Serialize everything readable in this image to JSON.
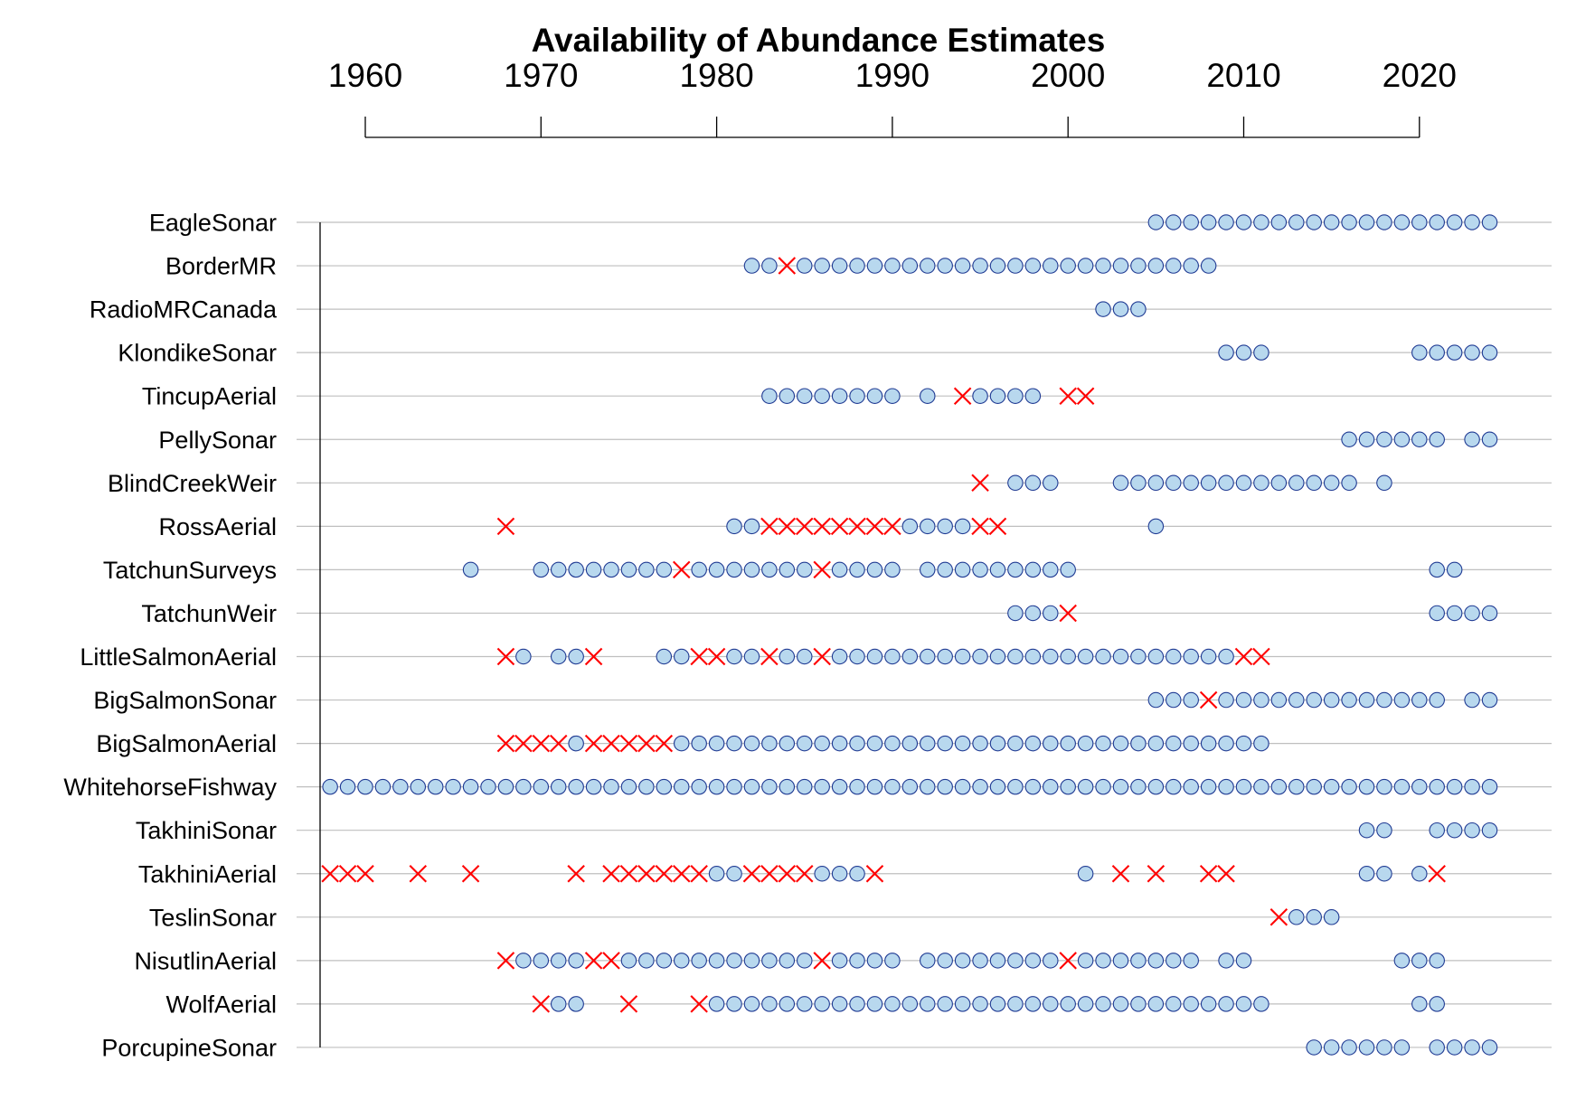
{
  "chart_data": {
    "type": "scatter",
    "title": "Availability of Abundance Estimates",
    "xlabel": "",
    "ylabel": "",
    "x_axis_position": "top",
    "xlim": [
      1957.8,
      2026.8
    ],
    "x_ticks": [
      1960,
      1970,
      1980,
      1990,
      2000,
      2010,
      2020
    ],
    "grid": "horizontal",
    "legend": "none",
    "colors": {
      "available_fill": "#b8d8ee",
      "available_stroke": "#1f3a93",
      "cross": "#ff0000",
      "gridline": "#bfbfbf",
      "axis": "#000000"
    },
    "series": [
      {
        "name": "EagleSonar",
        "available": [
          2005,
          2006,
          2007,
          2008,
          2009,
          2010,
          2011,
          2012,
          2013,
          2014,
          2015,
          2016,
          2017,
          2018,
          2019,
          2020,
          2021,
          2022,
          2023,
          2024
        ],
        "unavailable": []
      },
      {
        "name": "BorderMR",
        "available": [
          1982,
          1983,
          1985,
          1986,
          1987,
          1988,
          1989,
          1990,
          1991,
          1992,
          1993,
          1994,
          1995,
          1996,
          1997,
          1998,
          1999,
          2000,
          2001,
          2002,
          2003,
          2004,
          2005,
          2006,
          2007,
          2008
        ],
        "unavailable": [
          1984
        ]
      },
      {
        "name": "RadioMRCanada",
        "available": [
          2002,
          2003,
          2004
        ],
        "unavailable": []
      },
      {
        "name": "KlondikeSonar",
        "available": [
          2009,
          2010,
          2011,
          2020,
          2021,
          2022,
          2023,
          2024
        ],
        "unavailable": []
      },
      {
        "name": "TincupAerial",
        "available": [
          1983,
          1984,
          1985,
          1986,
          1987,
          1988,
          1989,
          1990,
          1992,
          1995,
          1996,
          1997,
          1998
        ],
        "unavailable": [
          1994,
          2000,
          2001
        ]
      },
      {
        "name": "PellySonar",
        "available": [
          2016,
          2017,
          2018,
          2019,
          2020,
          2021,
          2023,
          2024
        ],
        "unavailable": []
      },
      {
        "name": "BlindCreekWeir",
        "available": [
          1997,
          1998,
          1999,
          2003,
          2004,
          2005,
          2006,
          2007,
          2008,
          2009,
          2010,
          2011,
          2012,
          2013,
          2014,
          2015,
          2016,
          2018
        ],
        "unavailable": [
          1995
        ]
      },
      {
        "name": "RossAerial",
        "available": [
          1981,
          1982,
          1991,
          1992,
          1993,
          1994,
          2005
        ],
        "unavailable": [
          1968,
          1983,
          1984,
          1985,
          1986,
          1987,
          1988,
          1989,
          1990,
          1995,
          1996
        ]
      },
      {
        "name": "TatchunSurveys",
        "available": [
          1966,
          1970,
          1971,
          1972,
          1973,
          1974,
          1975,
          1976,
          1977,
          1979,
          1980,
          1981,
          1982,
          1983,
          1984,
          1985,
          1987,
          1988,
          1989,
          1990,
          1992,
          1993,
          1994,
          1995,
          1996,
          1997,
          1998,
          1999,
          2000,
          2021,
          2022
        ],
        "unavailable": [
          1978,
          1986
        ]
      },
      {
        "name": "TatchunWeir",
        "available": [
          1997,
          1998,
          1999,
          2021,
          2022,
          2023,
          2024
        ],
        "unavailable": [
          2000
        ]
      },
      {
        "name": "LittleSalmonAerial",
        "available": [
          1969,
          1971,
          1972,
          1977,
          1978,
          1981,
          1982,
          1984,
          1985,
          1987,
          1988,
          1989,
          1990,
          1991,
          1992,
          1993,
          1994,
          1995,
          1996,
          1997,
          1998,
          1999,
          2000,
          2001,
          2002,
          2003,
          2004,
          2005,
          2006,
          2007,
          2008,
          2009
        ],
        "unavailable": [
          1968,
          1973,
          1979,
          1980,
          1983,
          1986,
          2010,
          2011
        ]
      },
      {
        "name": "BigSalmonSonar",
        "available": [
          2005,
          2006,
          2007,
          2009,
          2010,
          2011,
          2012,
          2013,
          2014,
          2015,
          2016,
          2017,
          2018,
          2019,
          2020,
          2021,
          2023,
          2024
        ],
        "unavailable": [
          2008
        ]
      },
      {
        "name": "BigSalmonAerial",
        "available": [
          1972,
          1978,
          1979,
          1980,
          1981,
          1982,
          1983,
          1984,
          1985,
          1986,
          1987,
          1988,
          1989,
          1990,
          1991,
          1992,
          1993,
          1994,
          1995,
          1996,
          1997,
          1998,
          1999,
          2000,
          2001,
          2002,
          2003,
          2004,
          2005,
          2006,
          2007,
          2008,
          2009,
          2010,
          2011
        ],
        "unavailable": [
          1968,
          1969,
          1970,
          1971,
          1973,
          1974,
          1975,
          1976,
          1977
        ]
      },
      {
        "name": "WhitehorseFishway",
        "available": [
          1958,
          1959,
          1960,
          1961,
          1962,
          1963,
          1964,
          1965,
          1966,
          1967,
          1968,
          1969,
          1970,
          1971,
          1972,
          1973,
          1974,
          1975,
          1976,
          1977,
          1978,
          1979,
          1980,
          1981,
          1982,
          1983,
          1984,
          1985,
          1986,
          1987,
          1988,
          1989,
          1990,
          1991,
          1992,
          1993,
          1994,
          1995,
          1996,
          1997,
          1998,
          1999,
          2000,
          2001,
          2002,
          2003,
          2004,
          2005,
          2006,
          2007,
          2008,
          2009,
          2010,
          2011,
          2012,
          2013,
          2014,
          2015,
          2016,
          2017,
          2018,
          2019,
          2020,
          2021,
          2022,
          2023,
          2024
        ],
        "unavailable": []
      },
      {
        "name": "TakhiniSonar",
        "available": [
          2017,
          2018,
          2021,
          2022,
          2023,
          2024
        ],
        "unavailable": []
      },
      {
        "name": "TakhiniAerial",
        "available": [
          1980,
          1981,
          1986,
          1987,
          1988,
          2001,
          2017,
          2018,
          2020
        ],
        "unavailable": [
          1958,
          1959,
          1960,
          1963,
          1966,
          1972,
          1974,
          1975,
          1976,
          1977,
          1978,
          1979,
          1982,
          1983,
          1984,
          1985,
          1989,
          2003,
          2005,
          2008,
          2009,
          2021
        ]
      },
      {
        "name": "TeslinSonar",
        "available": [
          2013,
          2014,
          2015
        ],
        "unavailable": [
          2012
        ]
      },
      {
        "name": "NisutlinAerial",
        "available": [
          1969,
          1970,
          1971,
          1972,
          1975,
          1976,
          1977,
          1978,
          1979,
          1980,
          1981,
          1982,
          1983,
          1984,
          1985,
          1987,
          1988,
          1989,
          1990,
          1992,
          1993,
          1994,
          1995,
          1996,
          1997,
          1998,
          1999,
          2001,
          2002,
          2003,
          2004,
          2005,
          2006,
          2007,
          2009,
          2010,
          2019,
          2020,
          2021
        ],
        "unavailable": [
          1968,
          1973,
          1974,
          1986,
          2000
        ]
      },
      {
        "name": "WolfAerial",
        "available": [
          1971,
          1972,
          1980,
          1981,
          1982,
          1983,
          1984,
          1985,
          1986,
          1987,
          1988,
          1989,
          1990,
          1991,
          1992,
          1993,
          1994,
          1995,
          1996,
          1997,
          1998,
          1999,
          2000,
          2001,
          2002,
          2003,
          2004,
          2005,
          2006,
          2007,
          2008,
          2009,
          2010,
          2011,
          2020,
          2021
        ],
        "unavailable": [
          1970,
          1975,
          1979
        ]
      },
      {
        "name": "PorcupineSonar",
        "available": [
          2014,
          2015,
          2016,
          2017,
          2018,
          2019,
          2021,
          2022,
          2023,
          2024
        ],
        "unavailable": []
      }
    ]
  }
}
